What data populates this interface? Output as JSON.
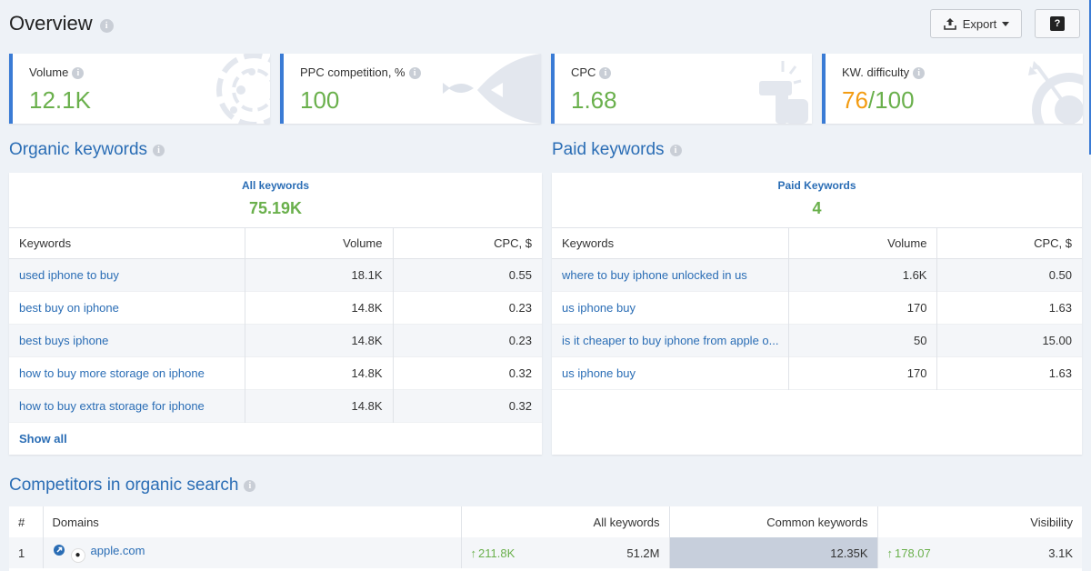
{
  "header": {
    "title": "Overview",
    "export_label": "Export",
    "help_label": "?"
  },
  "kpis": [
    {
      "label": "Volume",
      "value": "12.1K"
    },
    {
      "label": "PPC competition, %",
      "value": "100"
    },
    {
      "label": "CPC",
      "value": "1.68"
    },
    {
      "label": "KW. difficulty",
      "value_score": "76",
      "value_total": "/100"
    }
  ],
  "organic": {
    "title": "Organic keywords",
    "summary_label": "All keywords",
    "summary_value": "75.19K",
    "columns": [
      "Keywords",
      "Volume",
      "CPC, $"
    ],
    "rows": [
      {
        "keyword": "used iphone to buy",
        "volume": "18.1K",
        "cpc": "0.55"
      },
      {
        "keyword": "best buy on iphone",
        "volume": "14.8K",
        "cpc": "0.23"
      },
      {
        "keyword": "best buys iphone",
        "volume": "14.8K",
        "cpc": "0.23"
      },
      {
        "keyword": "how to buy more storage on iphone",
        "volume": "14.8K",
        "cpc": "0.32"
      },
      {
        "keyword": "how to buy extra storage for iphone",
        "volume": "14.8K",
        "cpc": "0.32"
      }
    ],
    "show_all": "Show all"
  },
  "paid": {
    "title": "Paid keywords",
    "summary_label": "Paid Keywords",
    "summary_value": "4",
    "columns": [
      "Keywords",
      "Volume",
      "CPC, $"
    ],
    "rows": [
      {
        "keyword": "where to buy iphone unlocked in us",
        "volume": "1.6K",
        "cpc": "0.50"
      },
      {
        "keyword": "us iphone buy",
        "volume": "170",
        "cpc": "1.63"
      },
      {
        "keyword": "is it cheaper to buy iphone from apple o...",
        "volume": "50",
        "cpc": "15.00"
      },
      {
        "keyword": "us iphone buy",
        "volume": "170",
        "cpc": "1.63"
      }
    ]
  },
  "competitors": {
    "title": "Competitors in organic search",
    "columns": [
      "#",
      "Domains",
      "All keywords",
      "Common keywords",
      "Visibility"
    ],
    "rows": [
      {
        "num": "1",
        "domain": "apple.com",
        "all_trend": "211.8K",
        "all_keywords": "51.2M",
        "common_keywords": "12.35K",
        "vis_trend": "178.07",
        "visibility": "3.1K"
      }
    ]
  },
  "colors": {
    "accent": "#3a7bd5",
    "link": "#2a6db5",
    "positive": "#6ab04c",
    "warning": "#f39c12"
  }
}
